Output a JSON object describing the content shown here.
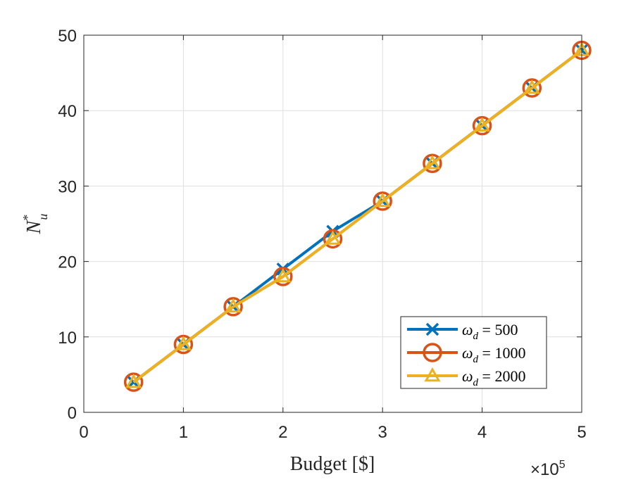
{
  "chart_data": {
    "type": "line",
    "xlabel": "Budget [$]",
    "ylabel": "N*_u",
    "x_exponent_label": "×10",
    "x_exponent_power": "5",
    "xlim": [
      0,
      500000
    ],
    "ylim": [
      0,
      50
    ],
    "xticks": [
      0,
      100000,
      200000,
      300000,
      400000,
      500000
    ],
    "xtick_labels": [
      "0",
      "1",
      "2",
      "3",
      "4",
      "5"
    ],
    "yticks": [
      0,
      10,
      20,
      30,
      40,
      50
    ],
    "ytick_labels": [
      "0",
      "10",
      "20",
      "30",
      "40",
      "50"
    ],
    "grid": true,
    "legend_position": "lower-right",
    "x": [
      50000,
      100000,
      150000,
      200000,
      250000,
      300000,
      350000,
      400000,
      450000,
      500000
    ],
    "series": [
      {
        "name": "ω_d = 500",
        "label_symbol": "ω",
        "label_sub": "d",
        "label_value": " = 500",
        "color": "#0072BD",
        "marker": "x",
        "values": [
          4,
          9,
          14,
          19,
          24,
          28,
          33,
          38,
          43,
          48
        ]
      },
      {
        "name": "ω_d = 1000",
        "label_symbol": "ω",
        "label_sub": "d",
        "label_value": " = 1000",
        "color": "#D95319",
        "marker": "o",
        "values": [
          4,
          9,
          14,
          18,
          23,
          28,
          33,
          38,
          43,
          48
        ]
      },
      {
        "name": "ω_d = 2000",
        "label_symbol": "ω",
        "label_sub": "d",
        "label_value": " = 2000",
        "color": "#EDB120",
        "marker": "triangle",
        "values": [
          4,
          9,
          14,
          18,
          23,
          28,
          33,
          38,
          43,
          48
        ]
      }
    ]
  }
}
